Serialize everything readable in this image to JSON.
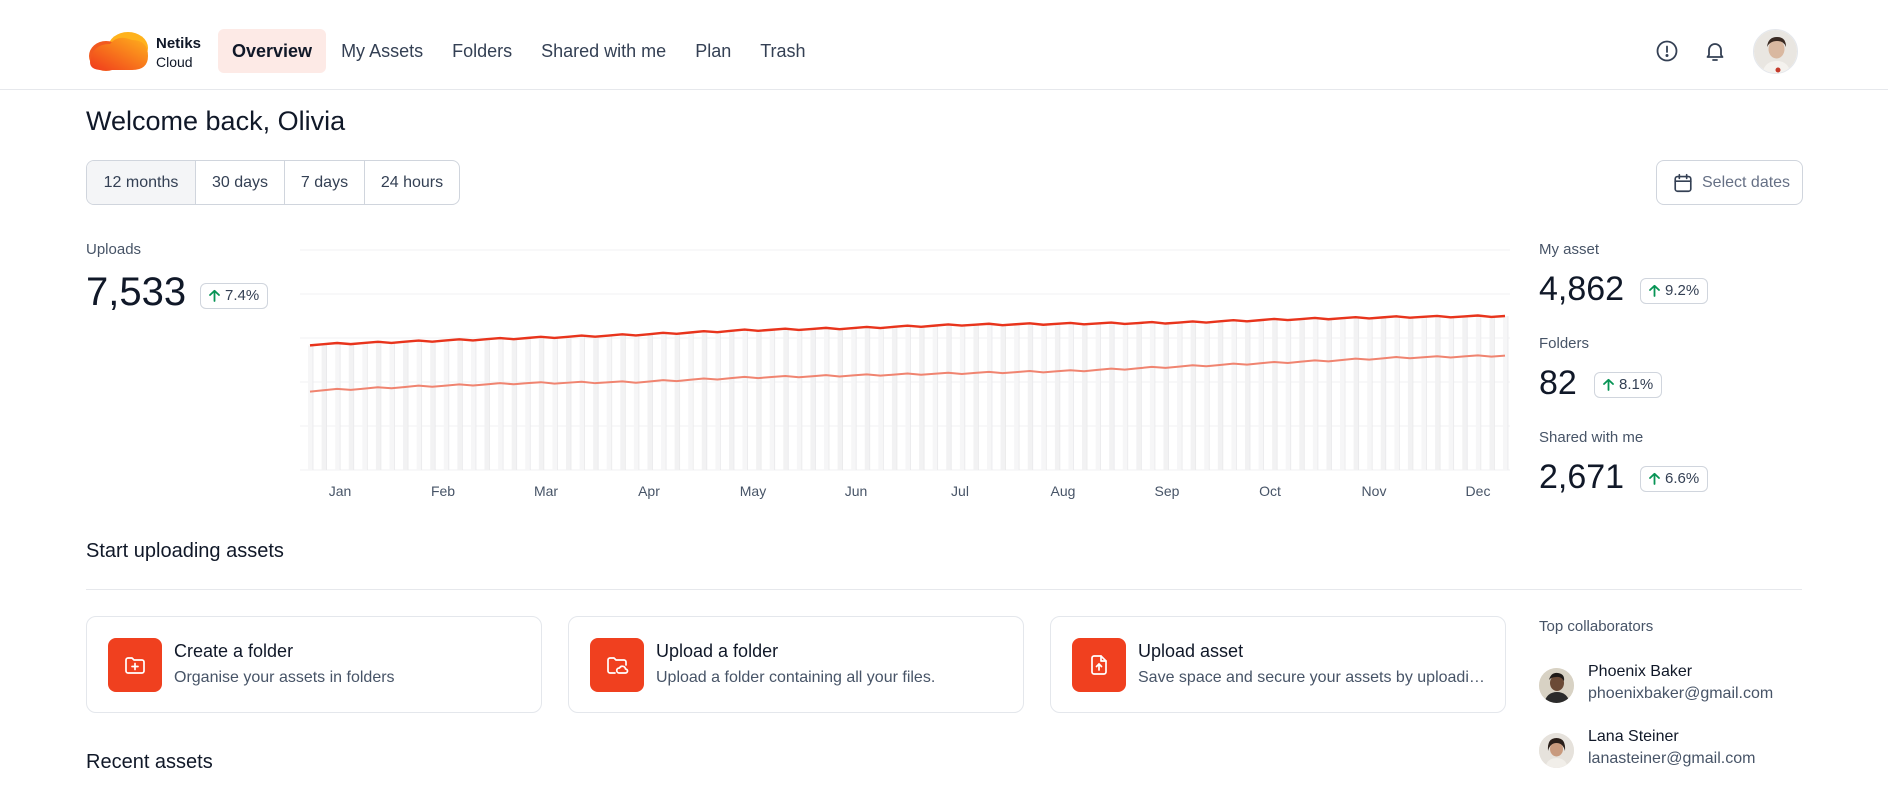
{
  "brand": {
    "name": "Netiks",
    "sub": "Cloud",
    "accent": "#f0401f"
  },
  "nav": {
    "items": [
      {
        "label": "Overview",
        "active": true
      },
      {
        "label": "My Assets"
      },
      {
        "label": "Folders"
      },
      {
        "label": "Shared with me"
      },
      {
        "label": "Plan"
      },
      {
        "label": "Trash"
      }
    ]
  },
  "header_icons": [
    "info-icon",
    "bell-icon",
    "user-avatar"
  ],
  "welcome": "Welcome back, Olivia",
  "ranges": {
    "items": [
      {
        "label": "12 months",
        "active": true
      },
      {
        "label": "30 days"
      },
      {
        "label": "7 days"
      },
      {
        "label": "24 hours"
      }
    ]
  },
  "select_dates": "Select dates",
  "uploads": {
    "label": "Uploads",
    "value": "7,533",
    "change": "7.4%"
  },
  "stats": [
    {
      "label": "My asset",
      "value": "4,862",
      "change": "9.2%"
    },
    {
      "label": "Folders",
      "value": "82",
      "change": "8.1%"
    },
    {
      "label": "Shared with me",
      "value": "2,671",
      "change": "6.6%"
    }
  ],
  "chart_data": {
    "type": "line",
    "categories": [
      "Jan",
      "Feb",
      "Mar",
      "Apr",
      "May",
      "Jun",
      "Jul",
      "Aug",
      "Sep",
      "Oct",
      "Nov",
      "Dec"
    ],
    "grid": true,
    "ylim": [
      0,
      100
    ],
    "series": [
      {
        "color": "#e8341c",
        "values": [
          57,
          58.5,
          60,
          61.5,
          63.5,
          64.5,
          66,
          66.5,
          67,
          68.5,
          69.5,
          70
        ]
      },
      {
        "color": "#f08470",
        "values": [
          36,
          38,
          39.5,
          40,
          42,
          43,
          44,
          45,
          47,
          49,
          51,
          52
        ]
      }
    ]
  },
  "start_uploading": {
    "title": "Start uploading assets",
    "cards": [
      {
        "title": "Create a folder",
        "desc": "Organise your assets in folders",
        "icon": "folder-plus-icon"
      },
      {
        "title": "Upload a folder",
        "desc": "Upload a folder containing all your files.",
        "icon": "folder-cloud-icon"
      },
      {
        "title": "Upload asset",
        "desc": "Save space and secure your assets by uploading…",
        "icon": "file-upload-icon"
      }
    ]
  },
  "collaborators": {
    "title": "Top collaborators",
    "items": [
      {
        "name": "Phoenix Baker",
        "email": "phoenixbaker@gmail.com"
      },
      {
        "name": "Lana Steiner",
        "email": "lanasteiner@gmail.com"
      }
    ]
  },
  "recent_assets": {
    "title": "Recent assets"
  }
}
